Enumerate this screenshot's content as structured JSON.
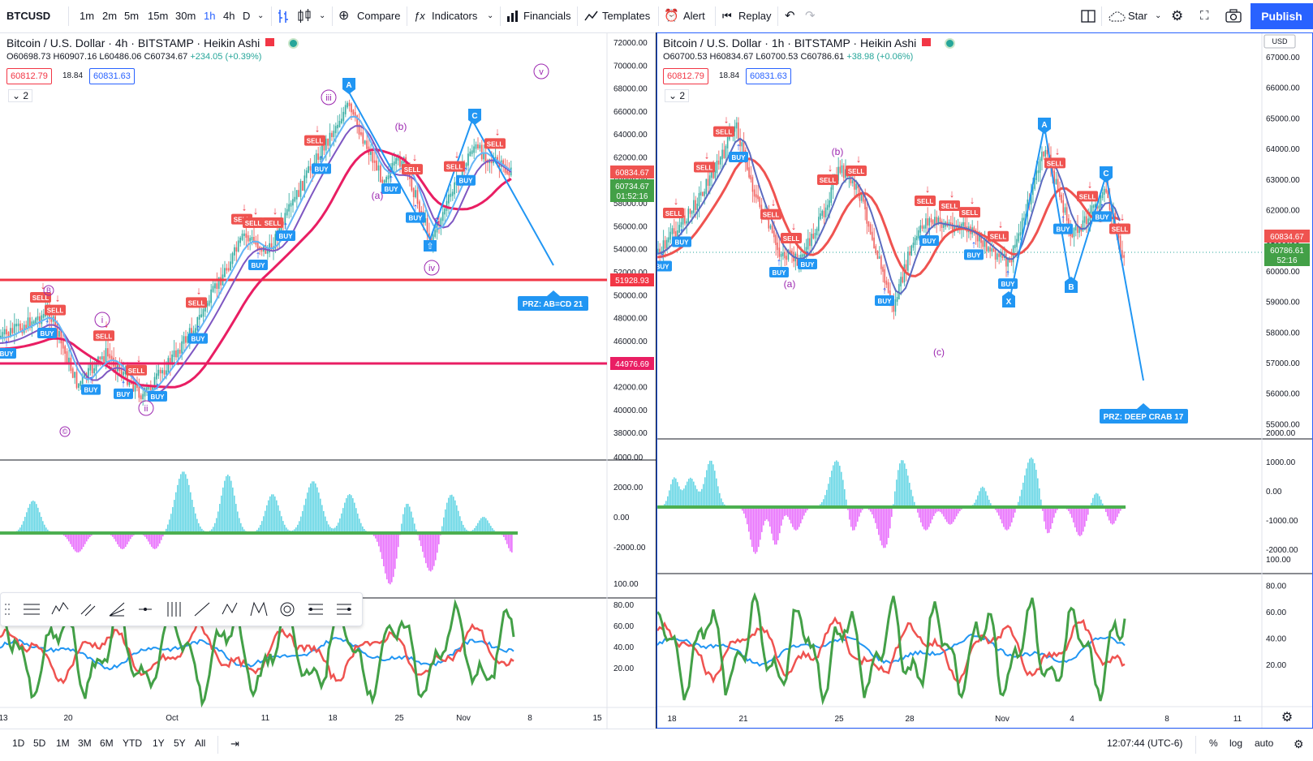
{
  "toolbar": {
    "symbol": "BTCUSD",
    "intervals": [
      "1m",
      "2m",
      "5m",
      "15m",
      "30m",
      "1h",
      "4h",
      "D"
    ],
    "active_interval": "1h",
    "compare": "Compare",
    "indicators": "Indicators",
    "financials": "Financials",
    "templates": "Templates",
    "alert": "Alert",
    "replay": "Replay",
    "star": "Star",
    "publish": "Publish"
  },
  "left_chart": {
    "title": "Bitcoin / U.S. Dollar · 4h · BITSTAMP · Heikin Ashi",
    "ohlc": {
      "o": "O60698.73",
      "h": "H60907.16",
      "l": "L60486.06",
      "c": "C60734.67",
      "chg": "+234.05 (+0.39%)"
    },
    "bid": "60812.79",
    "spread": "18.84",
    "ask": "60831.63",
    "collapse": "2",
    "price_axis": [
      "72000.00",
      "70000.00",
      "68000.00",
      "66000.00",
      "64000.00",
      "62000.00",
      "60000.00",
      "58000.00",
      "56000.00",
      "54000.00",
      "52000.00",
      "50000.00",
      "48000.00",
      "46000.00",
      "44000.00",
      "42000.00",
      "40000.00",
      "38000.00"
    ],
    "price_tags": {
      "red": "51928.93",
      "pink": "44976.69",
      "current": "60834.67",
      "last": "60734.67",
      "countdown": "01:52:16"
    },
    "osc_axis": [
      "4000.00",
      "2000.00",
      "0.00",
      "-2000.00"
    ],
    "rsi_axis": [
      "100.00",
      "80.00",
      "60.00",
      "40.00",
      "20.00"
    ],
    "time_axis": [
      "13",
      "20",
      "Oct",
      "11",
      "18",
      "25",
      "Nov",
      "8",
      "15"
    ],
    "prz": "PRZ: AB=CD 21",
    "wave_labels": [
      "v",
      "iii",
      "iv",
      "ii",
      "i",
      "(a)",
      "(b)",
      "c",
      "B",
      "C",
      "A",
      "©"
    ]
  },
  "right_chart": {
    "title": "Bitcoin / U.S. Dollar · 1h · BITSTAMP · Heikin Ashi",
    "ohlc": {
      "o": "O60700.53",
      "h": "H60834.67",
      "l": "L60700.53",
      "c": "C60786.61",
      "chg": "+38.98 (+0.06%)"
    },
    "bid": "60812.79",
    "spread": "18.84",
    "ask": "60831.63",
    "collapse": "2",
    "currency": "USD",
    "price_axis": [
      "67000.00",
      "66000.00",
      "65000.00",
      "64000.00",
      "63000.00",
      "62000.00",
      "61000.00",
      "60000.00",
      "59000.00",
      "58000.00",
      "57000.00",
      "56000.00",
      "55000.00"
    ],
    "price_tags": {
      "current": "60834.67",
      "last": "60786.61",
      "countdown": "52:16"
    },
    "osc_axis": [
      "2000.00",
      "1000.00",
      "0.00",
      "-1000.00",
      "-2000.00"
    ],
    "rsi_axis": [
      "100.00",
      "80.00",
      "60.00",
      "40.00",
      "20.00"
    ],
    "time_axis": [
      "18",
      "21",
      "25",
      "28",
      "Nov",
      "4",
      "8",
      "11"
    ],
    "prz": "PRZ: DEEP CRAB 17",
    "pattern_points": [
      "A",
      "B",
      "C",
      "X"
    ],
    "wave_labels": [
      "(b)",
      "(a)",
      "(c)"
    ]
  },
  "signals": {
    "buy": "BUY",
    "sell": "SELL"
  },
  "bottom": {
    "ranges": [
      "1D",
      "5D",
      "1M",
      "3M",
      "6M",
      "YTD",
      "1Y",
      "5Y",
      "All"
    ],
    "time": "12:07:44 (UTC-6)",
    "percent": "%",
    "log": "log",
    "auto": "auto"
  },
  "colors": {
    "accent": "#2962ff",
    "sell": "#ef5350",
    "buy": "#2196f3",
    "wave": "#9c27b0",
    "osc_pos": "#26c6da",
    "osc_neg": "#e040fb"
  }
}
